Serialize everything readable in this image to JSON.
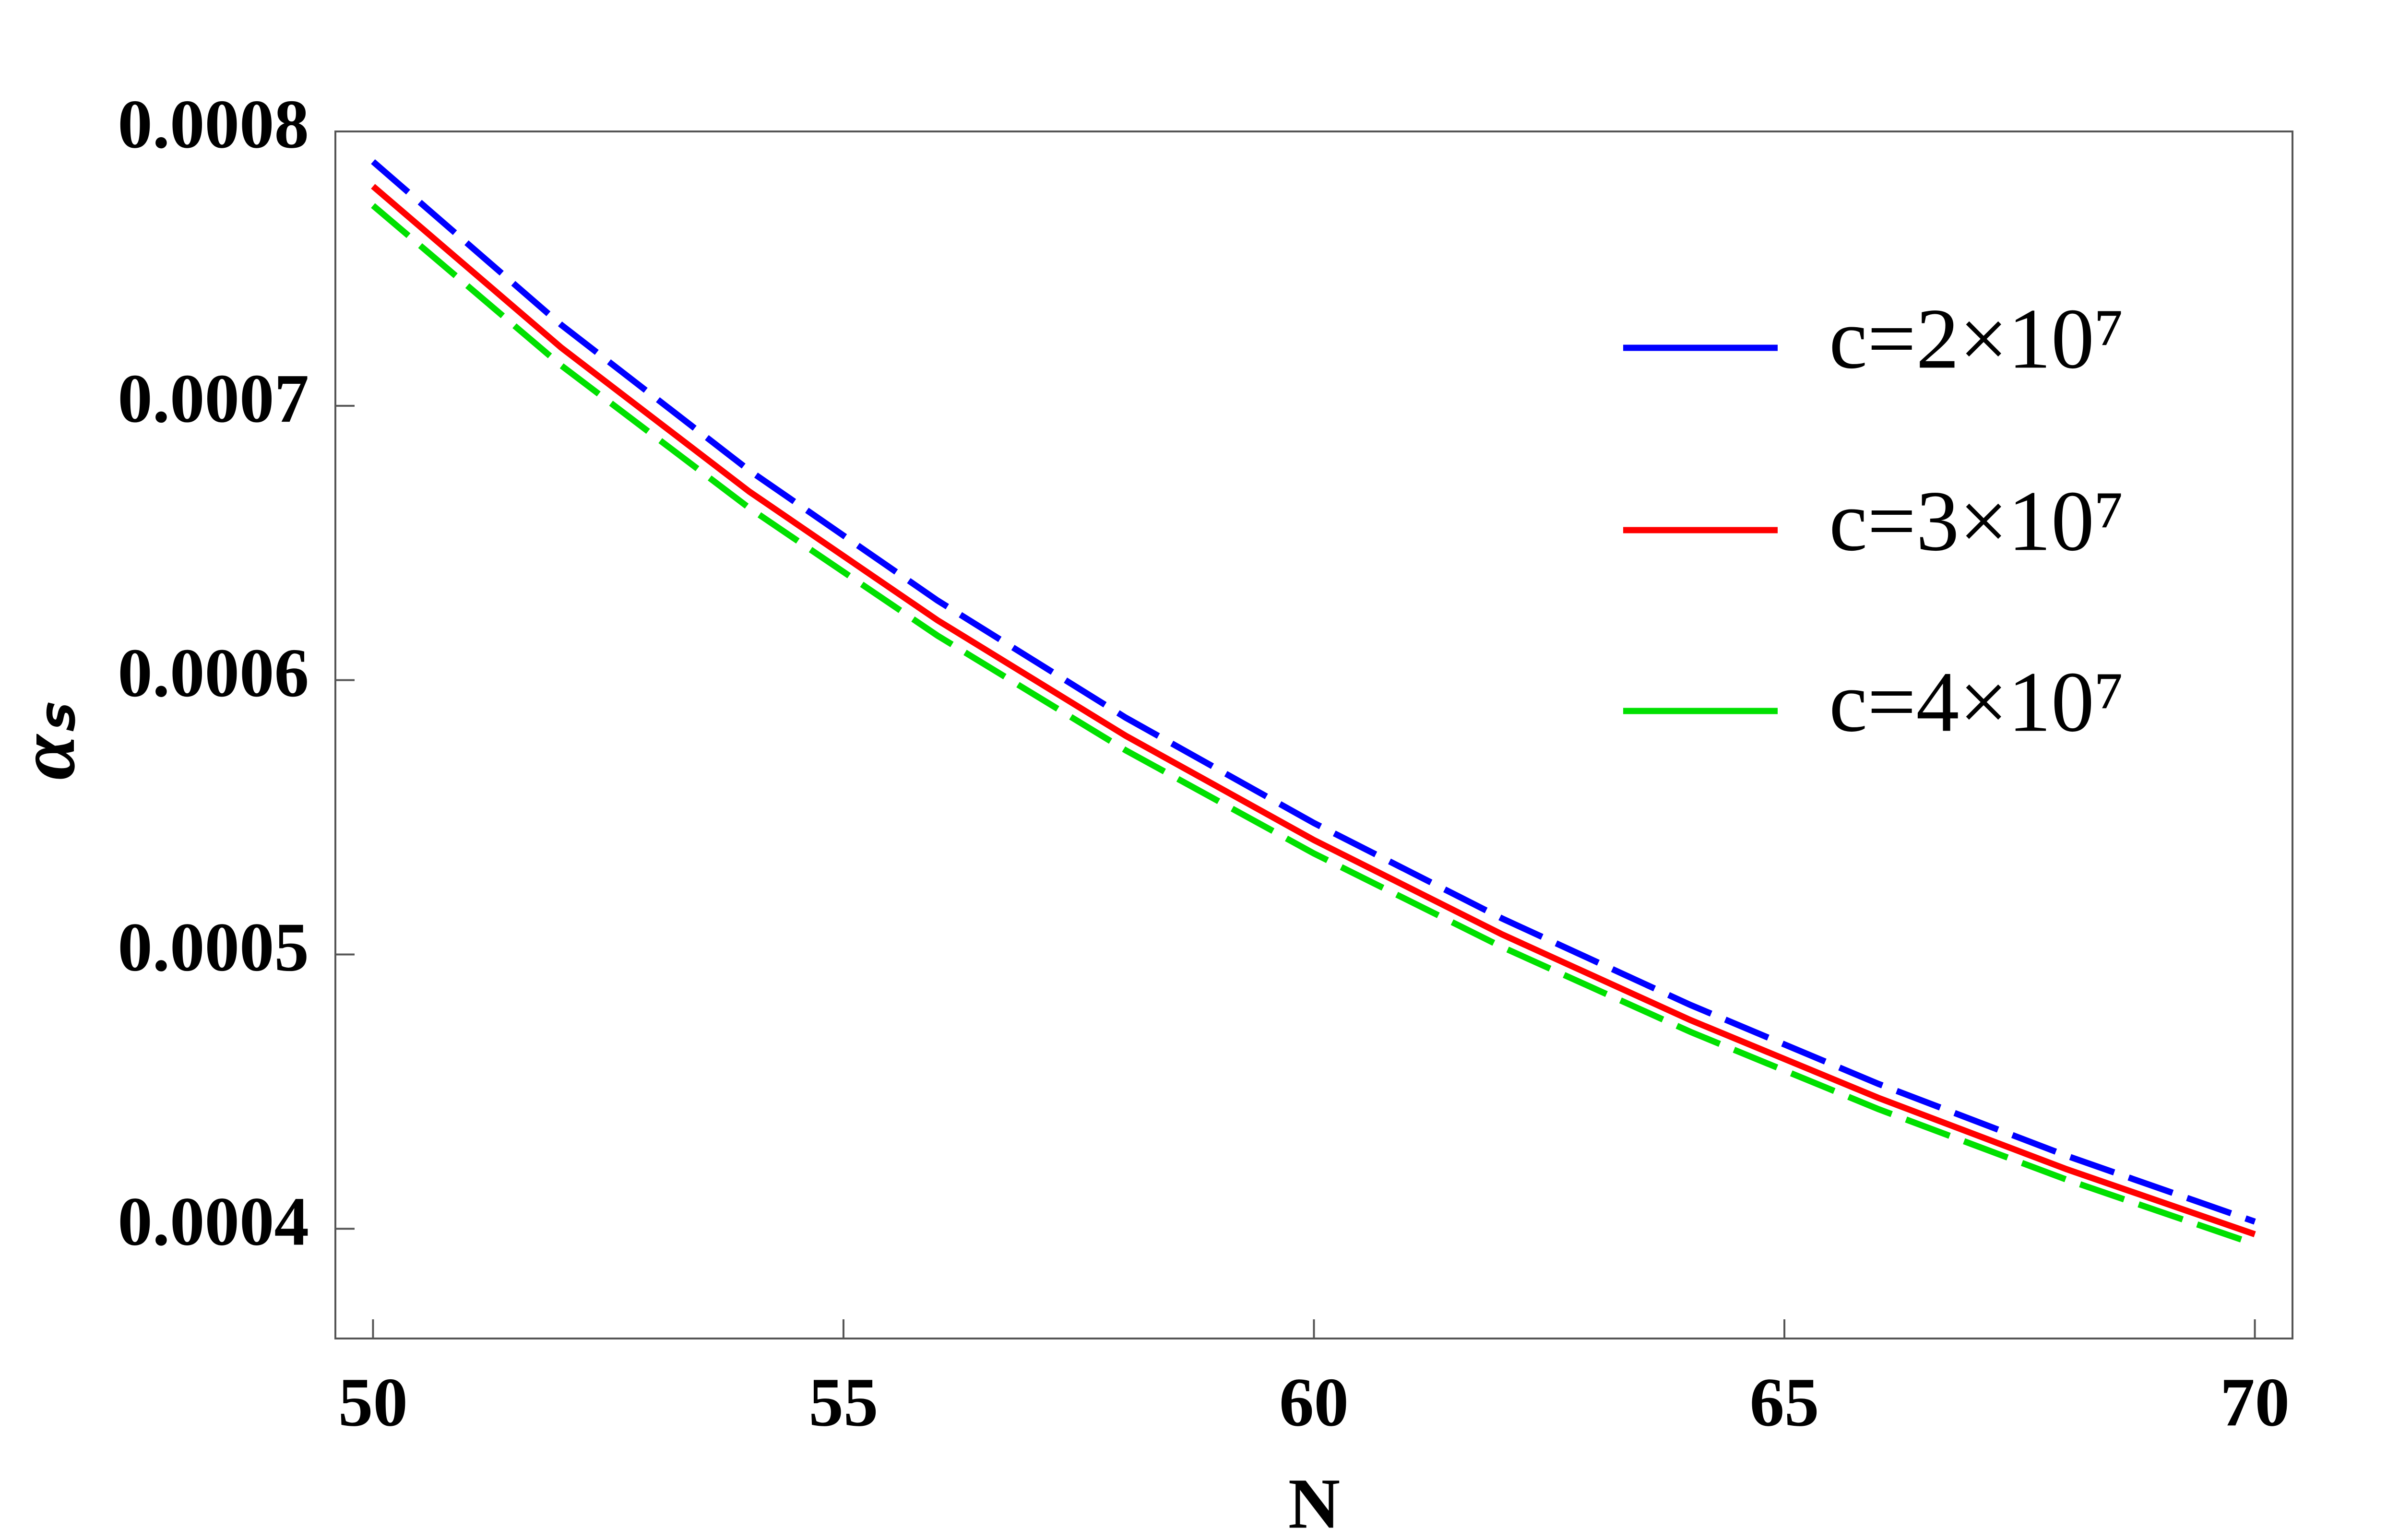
{
  "chart_data": {
    "type": "line",
    "x_label": "N",
    "y_label": "αₛ",
    "x": [
      50,
      52,
      54,
      56,
      58,
      60,
      62,
      64,
      66,
      68,
      70
    ],
    "series": [
      {
        "name": "c=2×10⁷",
        "color": "#0000ff",
        "style": "dashed",
        "values": [
          0.000789,
          0.0007295,
          0.0006764,
          0.000629,
          0.0005863,
          0.0005479,
          0.0005131,
          0.0004816,
          0.0004528,
          0.0004266,
          0.0004026
        ]
      },
      {
        "name": "c=3×10⁷",
        "color": "#ff0000",
        "style": "solid",
        "values": [
          0.00078,
          0.0007212,
          0.0006687,
          0.0006218,
          0.0005797,
          0.0005417,
          0.0005073,
          0.0004761,
          0.0004477,
          0.0004217,
          0.000398
        ]
      },
      {
        "name": "c=4×10⁷",
        "color": "#00e000",
        "style": "dashed",
        "values": [
          0.000773,
          0.0007147,
          0.0006627,
          0.0006162,
          0.0005744,
          0.0005368,
          0.0005027,
          0.0004718,
          0.0004436,
          0.0004179,
          0.0003944
        ]
      }
    ],
    "xlim": [
      49.6,
      70.4
    ],
    "xticks": [
      50,
      55,
      60,
      65,
      70
    ],
    "ylim": [
      0.00036,
      0.0008
    ],
    "yticks": [
      0.0004,
      0.0005,
      0.0006,
      0.0007,
      0.0008
    ],
    "legend": "upper right",
    "grid": false
  }
}
